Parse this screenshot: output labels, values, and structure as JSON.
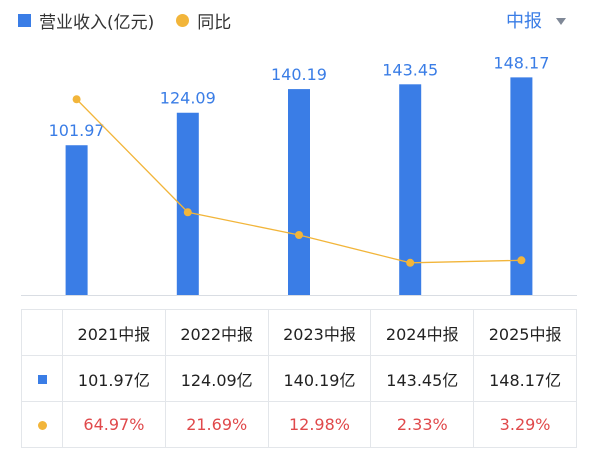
{
  "legend": {
    "series1": "营业收入(亿元)",
    "series2": "同比"
  },
  "period": {
    "label": "中报"
  },
  "chart_data": {
    "type": "bar",
    "categories": [
      "2021中报",
      "2022中报",
      "2023中报",
      "2024中报",
      "2025中报"
    ],
    "series": [
      {
        "name": "营业收入(亿元)",
        "type": "bar",
        "values": [
          101.97,
          124.09,
          140.19,
          143.45,
          148.17
        ],
        "labels": [
          "101.97",
          "124.09",
          "140.19",
          "143.45",
          "148.17"
        ],
        "color": "#3a7de6"
      },
      {
        "name": "同比",
        "type": "line",
        "values": [
          64.97,
          21.69,
          12.98,
          2.33,
          3.29
        ],
        "color": "#f2b53a"
      }
    ],
    "ylim": [
      0,
      160
    ],
    "line_ylim": [
      -10,
      80
    ],
    "grid": false
  },
  "table": {
    "headers": [
      "2021中报",
      "2022中报",
      "2023中报",
      "2024中报",
      "2025中报"
    ],
    "revenue": [
      "101.97亿",
      "124.09亿",
      "140.19亿",
      "143.45亿",
      "148.17亿"
    ],
    "yoy": [
      "64.97%",
      "21.69%",
      "12.98%",
      "2.33%",
      "3.29%"
    ]
  },
  "colors": {
    "bar": "#3a7de6",
    "line": "#f2b53a",
    "accent": "#3a7de6",
    "negative_text": "#e0494b",
    "axis": "#d9dde3"
  }
}
